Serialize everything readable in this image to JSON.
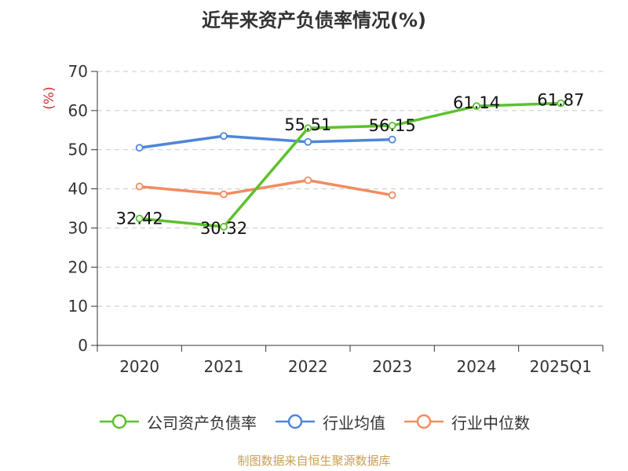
{
  "title": "近年来资产负债率情况(%)",
  "source_note": "制图数据来自恒生聚源数据库",
  "chart_data": {
    "type": "line",
    "title": "近年来资产负债率情况(%)",
    "ylabel": "(%)",
    "xlabel": "",
    "categories": [
      "2020",
      "2021",
      "2022",
      "2023",
      "2024",
      "2025Q1"
    ],
    "ylim": [
      0,
      70
    ],
    "yticks": [
      0,
      10,
      20,
      30,
      40,
      50,
      60,
      70
    ],
    "grid": true,
    "legend_position": "bottom",
    "series": [
      {
        "name": "公司资产负债率",
        "color": "#5cc12e",
        "values": [
          32.42,
          30.32,
          55.51,
          56.15,
          61.14,
          61.87
        ],
        "labels": [
          "32.42",
          "30.32",
          "55.51",
          "56.15",
          "61.14",
          "61.87"
        ]
      },
      {
        "name": "行业均值",
        "color": "#4f86d9",
        "values": [
          50.5,
          53.5,
          52.0,
          52.6,
          null,
          null
        ]
      },
      {
        "name": "行业中位数",
        "color": "#f28c5f",
        "values": [
          40.6,
          38.6,
          42.2,
          38.4,
          null,
          null
        ]
      }
    ]
  }
}
